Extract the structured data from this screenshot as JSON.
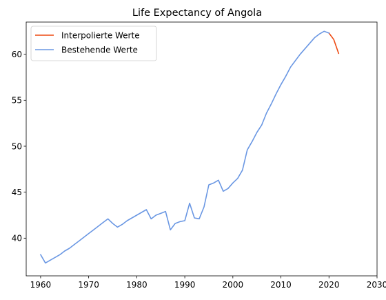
{
  "chart_data": {
    "type": "line",
    "title": "Life Expectancy of Angola",
    "xlabel": "",
    "ylabel": "",
    "xlim": [
      1957.0,
      2030
    ],
    "ylim": [
      35.9,
      63.5
    ],
    "xticks": [
      1960,
      1970,
      1980,
      1990,
      2000,
      2010,
      2020,
      2030
    ],
    "yticks": [
      40,
      45,
      50,
      55,
      60
    ],
    "grid": false,
    "legend_position": "top-left",
    "series": [
      {
        "name": "Interpolierte Werte",
        "color": "#ee4a12",
        "x": [
          2020,
          2021,
          2022
        ],
        "y": [
          62.3,
          61.6,
          60.1
        ]
      },
      {
        "name": "Bestehende Werte",
        "color": "#6a97e3",
        "x": [
          1960,
          1961,
          1962,
          1963,
          1964,
          1965,
          1966,
          1967,
          1968,
          1969,
          1970,
          1971,
          1972,
          1973,
          1974,
          1975,
          1976,
          1977,
          1978,
          1979,
          1980,
          1981,
          1982,
          1983,
          1984,
          1985,
          1986,
          1987,
          1988,
          1989,
          1990,
          1991,
          1992,
          1993,
          1994,
          1995,
          1996,
          1997,
          1998,
          1999,
          2000,
          2001,
          2002,
          2003,
          2004,
          2005,
          2006,
          2007,
          2008,
          2009,
          2010,
          2011,
          2012,
          2013,
          2014,
          2015,
          2016,
          2017,
          2018,
          2019,
          2020
        ],
        "y": [
          38.2,
          37.3,
          37.6,
          37.9,
          38.2,
          38.6,
          38.9,
          39.3,
          39.7,
          40.1,
          40.5,
          40.9,
          41.3,
          41.7,
          42.1,
          41.6,
          41.2,
          41.5,
          41.9,
          42.2,
          42.5,
          42.8,
          43.1,
          42.1,
          42.5,
          42.7,
          42.9,
          40.9,
          41.6,
          41.8,
          41.9,
          43.8,
          42.2,
          42.1,
          43.4,
          45.8,
          46.0,
          46.3,
          45.1,
          45.4,
          46.0,
          46.5,
          47.4,
          49.6,
          50.5,
          51.5,
          52.3,
          53.6,
          54.6,
          55.7,
          56.7,
          57.6,
          58.6,
          59.3,
          60.0,
          60.6,
          61.2,
          61.8,
          62.2,
          62.5,
          62.3
        ]
      }
    ]
  }
}
